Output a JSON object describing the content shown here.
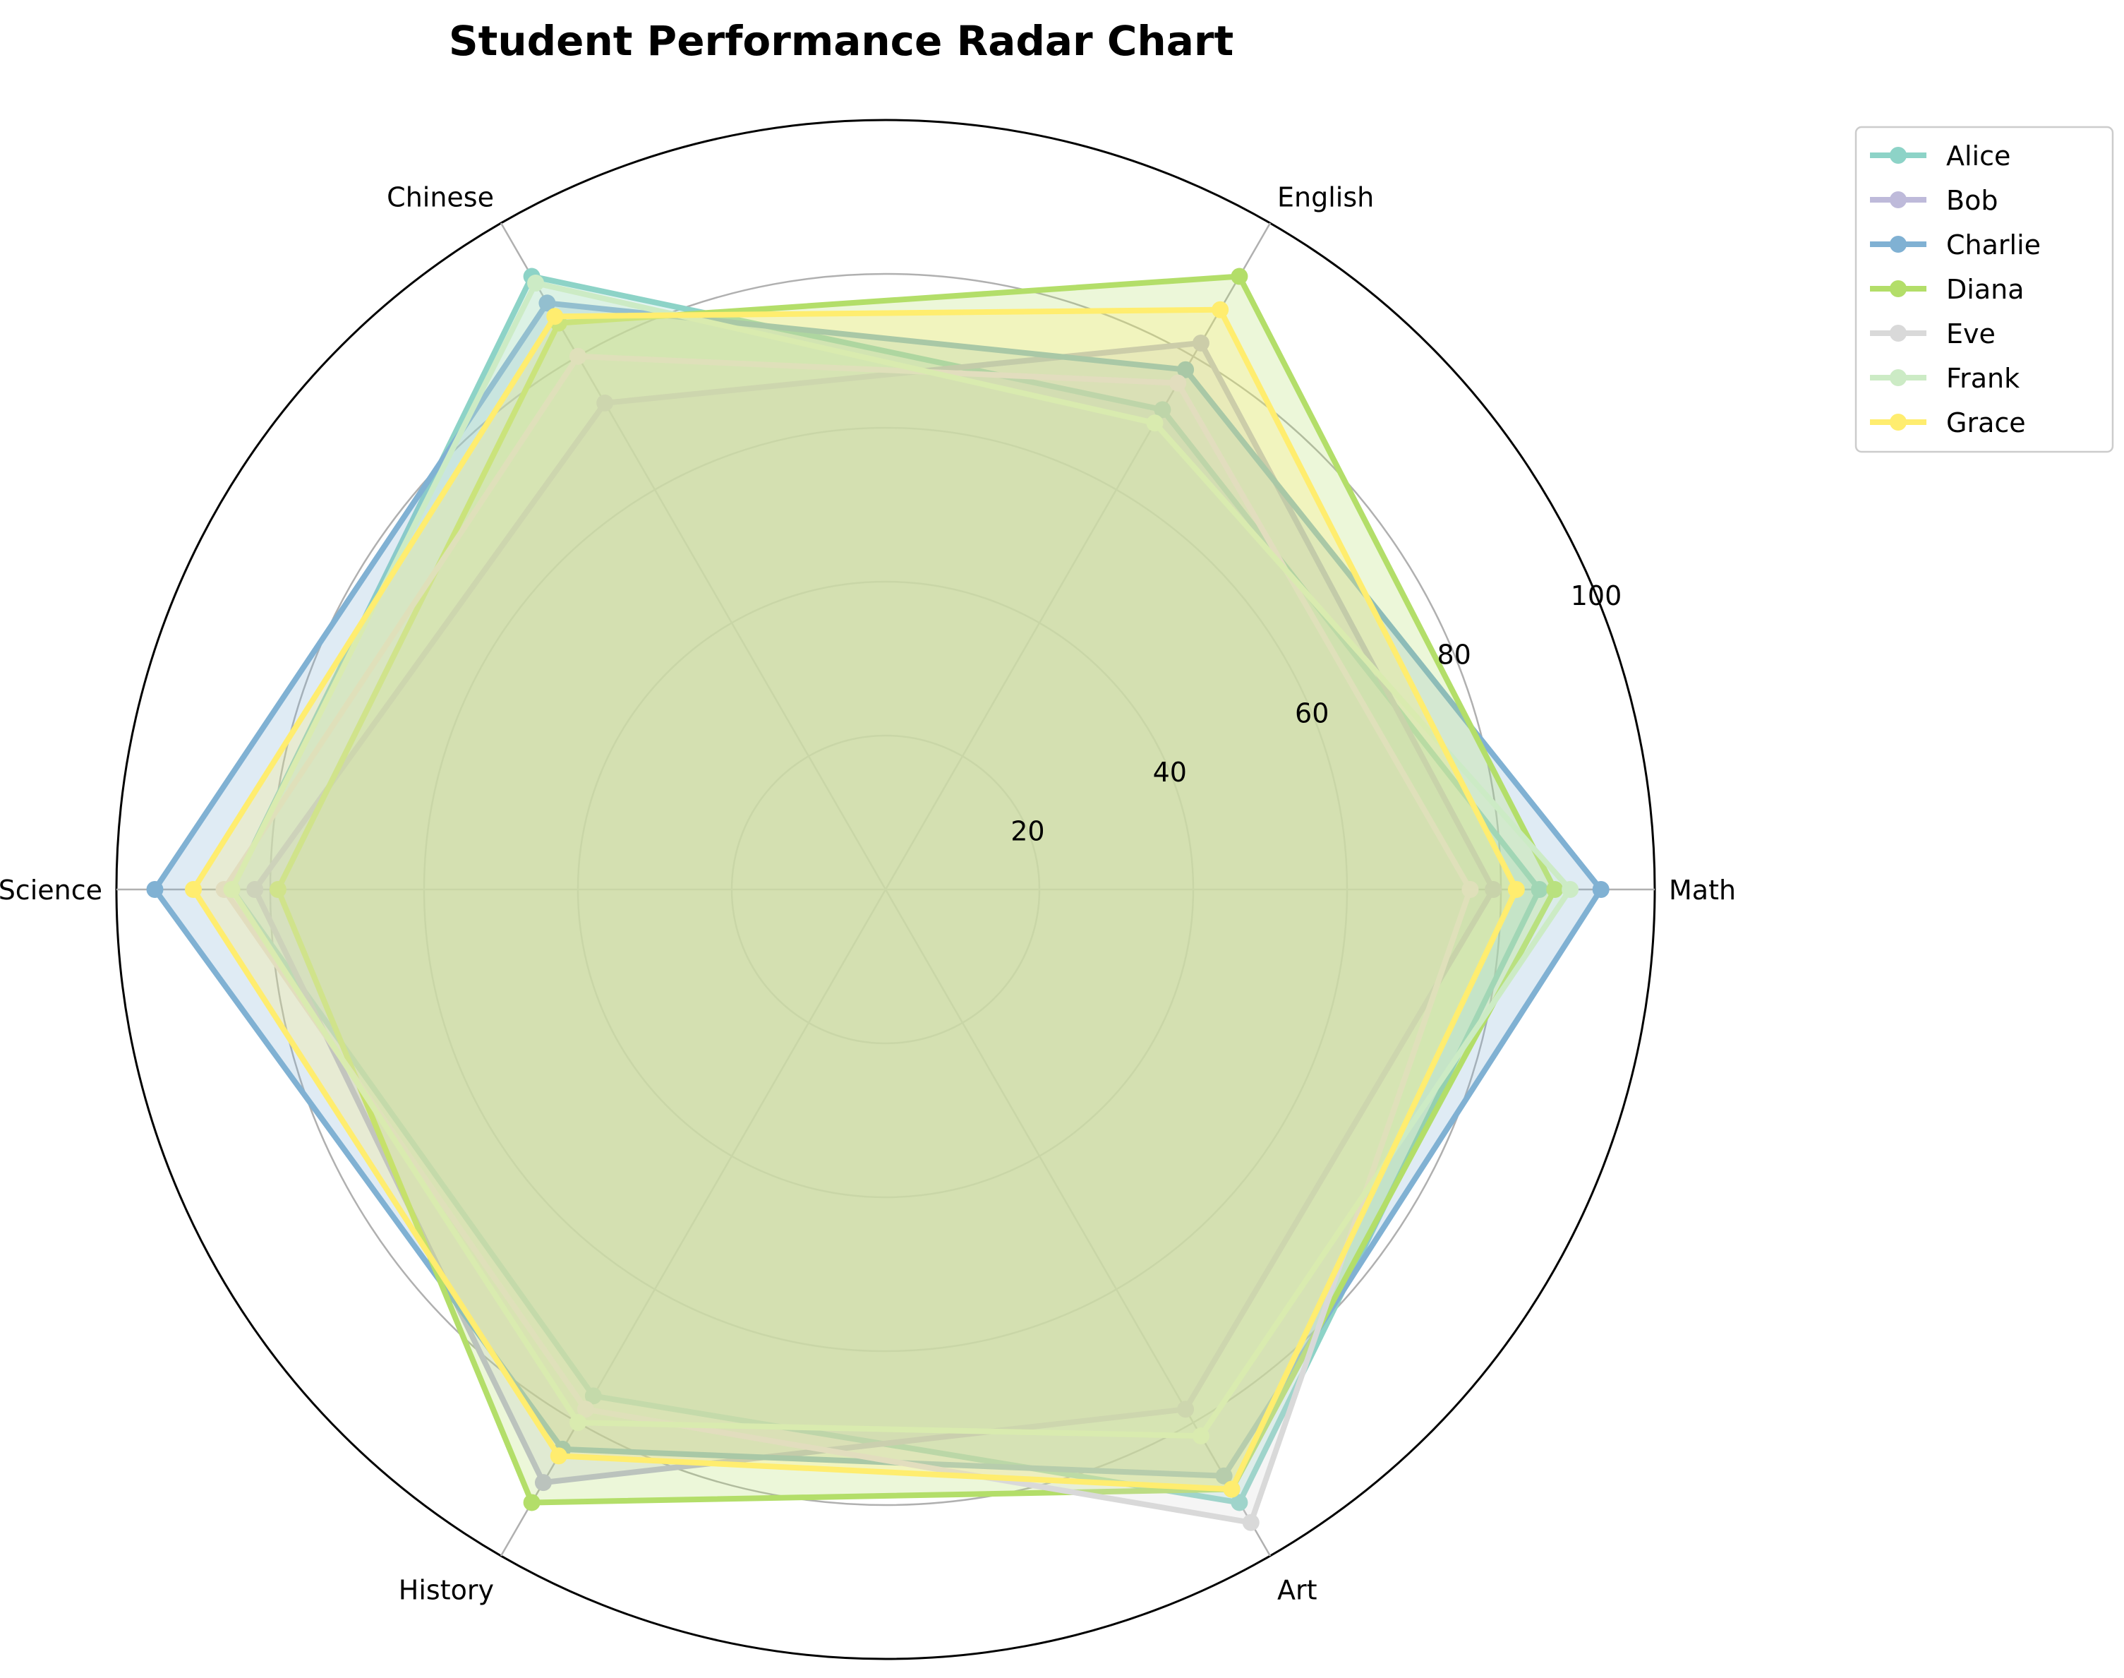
{
  "chart_data": {
    "type": "radar",
    "title": "Student Performance Radar Chart",
    "axes": [
      "Math",
      "English",
      "Chinese",
      "Science",
      "History",
      "Art"
    ],
    "rlim": [
      0,
      100
    ],
    "rticks": [
      20,
      40,
      60,
      80,
      100
    ],
    "grid": true,
    "filled": true,
    "legend_position": "top-right, outside the plot",
    "series": [
      {
        "name": "Alice",
        "color": "#8dd3c7",
        "values": [
          85,
          72,
          92,
          85,
          76,
          92
        ]
      },
      {
        "name": "Bob",
        "color": "#bebada",
        "values": [
          79,
          82,
          73,
          82,
          89,
          78
        ]
      },
      {
        "name": "Charlie",
        "color": "#80b1d3",
        "values": [
          93,
          78,
          88,
          95,
          84,
          88
        ]
      },
      {
        "name": "Diana",
        "color": "#b3de69",
        "values": [
          87,
          92,
          85,
          79,
          92,
          90
        ]
      },
      {
        "name": "Eve",
        "color": "#d9d9d9",
        "values": [
          76,
          76,
          80,
          86,
          78,
          95
        ]
      },
      {
        "name": "Frank",
        "color": "#ccebc5",
        "values": [
          89,
          70,
          91,
          85,
          80,
          82
        ]
      },
      {
        "name": "Grace",
        "color": "#ffed6f",
        "values": [
          82,
          87,
          86,
          90,
          85,
          90
        ]
      }
    ]
  }
}
